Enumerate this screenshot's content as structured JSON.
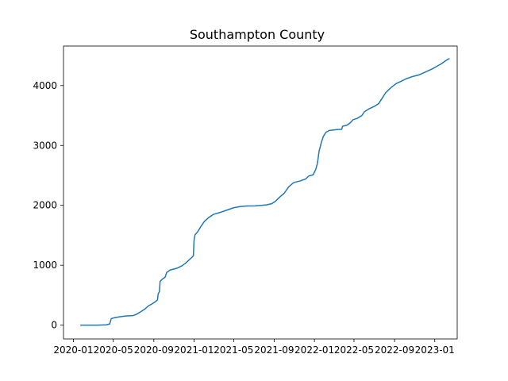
{
  "chart_data": {
    "type": "line",
    "title": "Southampton County",
    "xlabel": "",
    "ylabel": "",
    "x_axis": {
      "type": "date",
      "range": [
        "2019-12-02",
        "2023-03-10"
      ],
      "ticks": [
        "2020-01",
        "2020-05",
        "2020-09",
        "2021-01",
        "2021-05",
        "2021-09",
        "2022-01",
        "2022-05",
        "2022-09",
        "2023-01"
      ]
    },
    "y_axis": {
      "range": [
        -230,
        4660
      ],
      "ticks": [
        0,
        1000,
        2000,
        3000,
        4000
      ]
    },
    "grid": false,
    "legend": "none",
    "line_color": "#1f77b4",
    "series": [
      {
        "points": [
          [
            "2020-01-22",
            0
          ],
          [
            "2020-03-15",
            1
          ],
          [
            "2020-04-10",
            5
          ],
          [
            "2020-04-20",
            20
          ],
          [
            "2020-04-25",
            110
          ],
          [
            "2020-05-05",
            125
          ],
          [
            "2020-05-20",
            140
          ],
          [
            "2020-06-10",
            155
          ],
          [
            "2020-06-30",
            160
          ],
          [
            "2020-07-10",
            180
          ],
          [
            "2020-07-25",
            230
          ],
          [
            "2020-08-05",
            270
          ],
          [
            "2020-08-15",
            320
          ],
          [
            "2020-08-25",
            350
          ],
          [
            "2020-09-05",
            390
          ],
          [
            "2020-09-12",
            420
          ],
          [
            "2020-09-14",
            520
          ],
          [
            "2020-09-18",
            560
          ],
          [
            "2020-09-20",
            730
          ],
          [
            "2020-09-25",
            760
          ],
          [
            "2020-10-05",
            800
          ],
          [
            "2020-10-10",
            880
          ],
          [
            "2020-10-20",
            920
          ],
          [
            "2020-10-30",
            935
          ],
          [
            "2020-11-10",
            950
          ],
          [
            "2020-11-25",
            990
          ],
          [
            "2020-12-05",
            1030
          ],
          [
            "2020-12-15",
            1080
          ],
          [
            "2020-12-25",
            1130
          ],
          [
            "2020-12-30",
            1160
          ],
          [
            "2021-01-01",
            1420
          ],
          [
            "2021-01-04",
            1510
          ],
          [
            "2021-01-12",
            1560
          ],
          [
            "2021-01-22",
            1650
          ],
          [
            "2021-02-01",
            1730
          ],
          [
            "2021-02-15",
            1800
          ],
          [
            "2021-03-01",
            1850
          ],
          [
            "2021-03-20",
            1880
          ],
          [
            "2021-04-10",
            1920
          ],
          [
            "2021-05-01",
            1960
          ],
          [
            "2021-05-20",
            1980
          ],
          [
            "2021-06-10",
            1990
          ],
          [
            "2021-07-05",
            1992
          ],
          [
            "2021-07-25",
            2000
          ],
          [
            "2021-08-10",
            2010
          ],
          [
            "2021-08-25",
            2030
          ],
          [
            "2021-09-05",
            2070
          ],
          [
            "2021-09-20",
            2150
          ],
          [
            "2021-10-01",
            2200
          ],
          [
            "2021-10-15",
            2310
          ],
          [
            "2021-10-30",
            2380
          ],
          [
            "2021-11-20",
            2410
          ],
          [
            "2021-12-05",
            2440
          ],
          [
            "2021-12-15",
            2490
          ],
          [
            "2021-12-28",
            2510
          ],
          [
            "2022-01-05",
            2600
          ],
          [
            "2022-01-10",
            2700
          ],
          [
            "2022-01-15",
            2900
          ],
          [
            "2022-01-22",
            3050
          ],
          [
            "2022-01-28",
            3150
          ],
          [
            "2022-02-05",
            3220
          ],
          [
            "2022-02-15",
            3250
          ],
          [
            "2022-03-10",
            3265
          ],
          [
            "2022-03-25",
            3270
          ],
          [
            "2022-03-27",
            3320
          ],
          [
            "2022-04-10",
            3340
          ],
          [
            "2022-04-20",
            3380
          ],
          [
            "2022-04-28",
            3430
          ],
          [
            "2022-05-10",
            3450
          ],
          [
            "2022-05-25",
            3500
          ],
          [
            "2022-06-01",
            3560
          ],
          [
            "2022-06-15",
            3610
          ],
          [
            "2022-07-01",
            3650
          ],
          [
            "2022-07-15",
            3700
          ],
          [
            "2022-07-22",
            3760
          ],
          [
            "2022-08-05",
            3880
          ],
          [
            "2022-08-20",
            3960
          ],
          [
            "2022-09-05",
            4030
          ],
          [
            "2022-09-20",
            4070
          ],
          [
            "2022-10-05",
            4110
          ],
          [
            "2022-10-25",
            4150
          ],
          [
            "2022-11-15",
            4180
          ],
          [
            "2022-12-05",
            4230
          ],
          [
            "2022-12-25",
            4280
          ],
          [
            "2023-01-10",
            4330
          ],
          [
            "2023-01-20",
            4360
          ],
          [
            "2023-01-30",
            4400
          ],
          [
            "2023-02-10",
            4440
          ],
          [
            "2023-02-15",
            4450
          ]
        ]
      }
    ]
  }
}
